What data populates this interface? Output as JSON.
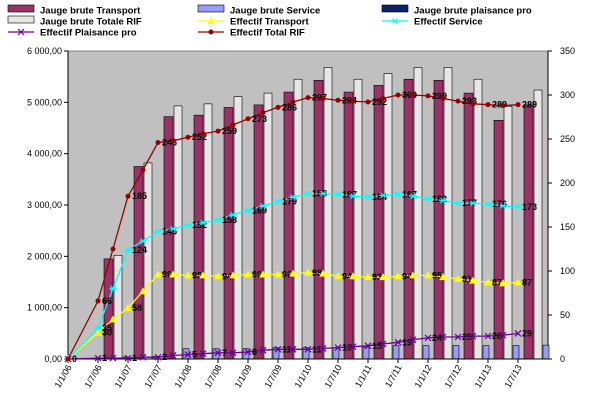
{
  "chart_data": {
    "type": "bar",
    "categories": [
      "1/1/06",
      "1/7/06",
      "1/1/07",
      "1/7/07",
      "1/1/08",
      "1/7/08",
      "1/1/09",
      "1/7/09",
      "1/1/10",
      "1/7/10",
      "1/1/11",
      "1/7/11",
      "1/1/12",
      "1/7/12",
      "1/1/13",
      "1/7/13"
    ],
    "y_left": {
      "range": [
        0,
        6000
      ],
      "ticks": [
        "0,00",
        "1 000,00",
        "2 000,00",
        "3 000,00",
        "4 000,00",
        "5 000,00",
        "6 000,00"
      ]
    },
    "y_right": {
      "range": [
        0,
        350
      ],
      "ticks": [
        "0",
        "50",
        "100",
        "150",
        "200",
        "250",
        "300",
        "350"
      ]
    },
    "grid": false,
    "plot_background": "#c0c0c0",
    "legend_position": "top",
    "bar_series": [
      {
        "name": "Jauge brute Transport",
        "color": "#993366",
        "values": [
          null,
          1950,
          3750,
          4720,
          4750,
          4900,
          4950,
          5200,
          5430,
          5200,
          5330,
          5450,
          5430,
          5180,
          4650,
          4950
        ]
      },
      {
        "name": "Jauge brute Totale RIF",
        "color": "#e6e6e6",
        "values": [
          null,
          2020,
          3820,
          4930,
          4970,
          5110,
          5180,
          5450,
          5680,
          5450,
          5560,
          5680,
          5680,
          5450,
          4920,
          5240
        ]
      },
      {
        "name": "Jauge brute Service",
        "color": "#9999ff",
        "values": [
          null,
          40,
          50,
          200,
          200,
          200,
          220,
          220,
          220,
          230,
          260,
          260,
          260,
          260,
          260,
          270
        ]
      },
      {
        "name": "Jauge brute plaisance pro",
        "color": "#0a246a",
        "values": [
          null,
          0,
          0,
          0,
          0,
          0,
          0,
          0,
          0,
          0,
          0,
          0,
          0,
          0,
          0,
          0
        ]
      }
    ],
    "line_series": [
      {
        "name": "Effectif Transport",
        "color": "#ffff00",
        "marker": "triangle",
        "x": [
          0,
          1,
          1.5,
          2,
          2.5,
          3,
          3.5,
          4,
          4.5,
          5,
          5.5,
          6,
          6.5,
          7,
          7.5,
          8,
          8.5,
          9,
          9.5,
          10,
          10.5,
          11,
          11.5,
          12,
          12.5,
          13,
          13.5,
          14,
          14.5,
          15
        ],
        "y": [
          0,
          30,
          45,
          58,
          77,
          96,
          96,
          95,
          95,
          94,
          95,
          96,
          96,
          96,
          97,
          98,
          97,
          94,
          94,
          93,
          93,
          94,
          95,
          95,
          93,
          91,
          89,
          87,
          86,
          87
        ],
        "labels": {
          "1": "30",
          "3": "58",
          "5": "96",
          "7": "95",
          "9": "94",
          "11": "96",
          "13": "96",
          "15": "98",
          "17": "94",
          "19": "93",
          "21": "94",
          "23": "95",
          "25": "91",
          "27": "87",
          "29": "87"
        }
      },
      {
        "name": "Effectif Service",
        "color": "#00ffff",
        "marker": "asterisk",
        "x": [
          0,
          1,
          1.5,
          2,
          2.5,
          3,
          3.5,
          4,
          4.5,
          5,
          5.5,
          6,
          6.5,
          7,
          7.5,
          8,
          8.5,
          9,
          9.5,
          10,
          10.5,
          11,
          11.5,
          12,
          12.5,
          13,
          13.5,
          14,
          14.5,
          15
        ],
        "y": [
          0,
          35,
          80,
          124,
          134,
          145,
          148,
          152,
          155,
          158,
          164,
          169,
          174,
          179,
          184,
          188,
          188,
          187,
          185,
          184,
          186,
          187,
          185,
          182,
          180,
          177,
          177,
          176,
          174,
          173
        ],
        "labels": {
          "1": "35",
          "3": "124",
          "5": "145",
          "7": "152",
          "9": "158",
          "11": "169",
          "13": "179",
          "15": "188",
          "17": "187",
          "19": "184",
          "21": "187",
          "23": "182",
          "25": "177",
          "27": "176",
          "29": "173"
        }
      },
      {
        "name": "Effectif Plaisance pro",
        "color": "#660099",
        "marker": "x",
        "x": [
          0,
          1,
          1.5,
          2,
          2.5,
          3,
          3.5,
          4,
          4.5,
          5,
          5.5,
          6,
          6.5,
          7,
          7.5,
          8,
          8.5,
          9,
          9.5,
          10,
          10.5,
          11,
          11.5,
          12,
          12.5,
          13,
          13.5,
          14,
          14.5,
          15
        ],
        "y": [
          0,
          1,
          1,
          1,
          2,
          2,
          4,
          5,
          6,
          7,
          7,
          8,
          10,
          11,
          11,
          11,
          12,
          13,
          14,
          15,
          17,
          19,
          22,
          24,
          25,
          25,
          26,
          26,
          27,
          29
        ],
        "labels": {
          "0": "0",
          "1": "1",
          "3": "1",
          "5": "2",
          "7": "5",
          "9": "7",
          "11": "8",
          "13": "11",
          "15": "11",
          "17": "13",
          "19": "15",
          "21": "19",
          "23": "24",
          "25": "25",
          "27": "26",
          "29": "29"
        }
      },
      {
        "name": "Effectif Total RIF",
        "color": "#990000",
        "marker": "circle",
        "x": [
          0,
          1,
          1.5,
          2,
          2.5,
          3,
          3.5,
          4,
          4.5,
          5,
          5.5,
          6,
          6.5,
          7,
          7.5,
          8,
          8.5,
          9,
          9.5,
          10,
          10.5,
          11,
          11.5,
          12,
          12.5,
          13,
          13.5,
          14,
          14.5,
          15
        ],
        "y": [
          0,
          66,
          125,
          185,
          215,
          246,
          248,
          252,
          256,
          259,
          266,
          273,
          280,
          286,
          292,
          297,
          296,
          294,
          293,
          292,
          296,
          300,
          300,
          299,
          296,
          293,
          290,
          289,
          288,
          289
        ],
        "labels": {
          "1": "66",
          "3": "185",
          "5": "246",
          "7": "252",
          "9": "259",
          "11": "273",
          "13": "286",
          "15": "297",
          "17": "294",
          "19": "292",
          "21": "300",
          "23": "299",
          "25": "293",
          "27": "289",
          "29": "289"
        }
      }
    ],
    "legend": [
      "Jauge brute Transport",
      "Jauge brute Service",
      "Jauge brute plaisance pro",
      "Jauge brute Totale RIF",
      "Effectif Transport",
      "Effectif Service",
      "Effectif Plaisance pro",
      "Effectif Total RIF"
    ]
  }
}
